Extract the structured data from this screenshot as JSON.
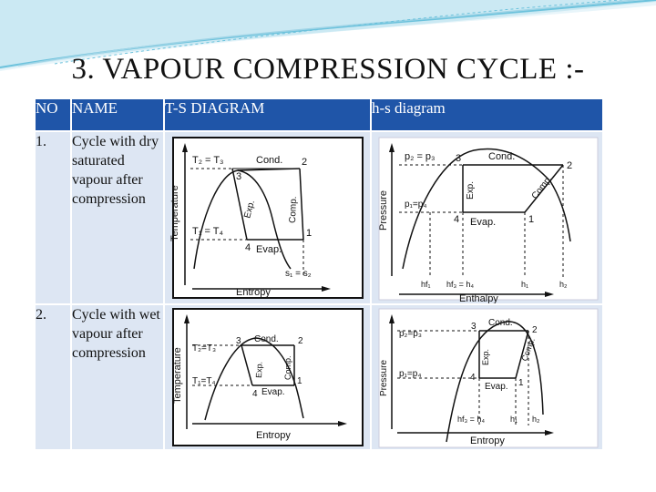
{
  "slide": {
    "title": "3. VAPOUR COMPRESSION CYCLE :-",
    "colors": {
      "header_bg": "#1f55a8",
      "row_bg": "#dde6f3",
      "wave": "#6cc2dc"
    }
  },
  "table": {
    "headers": [
      "NO",
      "NAME",
      "T-S DIAGRAM",
      "h-s diagram"
    ],
    "rows": [
      {
        "no": "1.",
        "name": "Cycle with dry saturated vapour after compression"
      },
      {
        "no": "2.",
        "name": "Cycle with wet vapour after compression"
      }
    ]
  },
  "diagrams": {
    "ts1": {
      "axis_y": "Temperature",
      "axis_x": "Entropy",
      "label_t": "T₂ = T₃",
      "label_b": "T₁ = T₄",
      "cond": "Cond.",
      "evap": "Evap.",
      "exp": "Exp.",
      "comp": "Comp.",
      "p1": "1",
      "p2": "2",
      "p3": "3",
      "p4": "4",
      "s": "s₁ = s₂"
    },
    "ph1": {
      "axis_y": "Pressure",
      "axis_x": "Enthalpy",
      "label_t": "p₂ = p₃",
      "label_b": "p₁=p₄",
      "cond": "Cond.",
      "evap": "Evap.",
      "exp": "Exp.",
      "comp": "Comp.",
      "p1": "1",
      "p2": "2",
      "p3": "3",
      "p4": "4",
      "h1": "hf₁",
      "h2": "hf₃ = h₄",
      "h3": "h₁",
      "h4": "h₂"
    },
    "ts2": {
      "axis_y": "Temperature",
      "axis_x": "Entropy",
      "label_t": "T₂=T₃",
      "label_b": "T₁=T₄",
      "cond": "Cond.",
      "evap": "Evap.",
      "exp": "Exp.",
      "comp": "Comp.",
      "p1": "1",
      "p2": "2",
      "p3": "3",
      "p4": "4"
    },
    "ph2": {
      "axis_y": "Pressure",
      "axis_x": "Entropy",
      "label_t": "p₂=p₃",
      "label_b": "p₁=p₄",
      "cond": "Cond.",
      "evap": "Evap.",
      "exp": "Exp.",
      "comp": "Comp.",
      "p1": "1",
      "p2": "2",
      "p3": "3",
      "p4": "4",
      "h1": "hf₃ = h₄",
      "h2": "h₁",
      "h3": "h₂"
    }
  }
}
